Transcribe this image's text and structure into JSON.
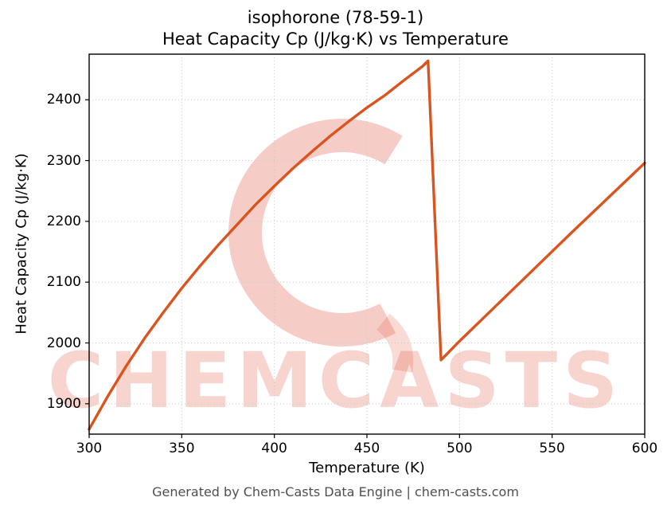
{
  "title_line1": "isophorone (78-59-1)",
  "title_line2": "Heat Capacity Cp (J/kg·K) vs Temperature",
  "footer": "Generated by Chem-Casts Data Engine | chem-casts.com",
  "watermark": {
    "text": "CHEMCASTS",
    "logo": "chemcasts-c-swirl",
    "color": "#e25842"
  },
  "chart_data": {
    "type": "line",
    "title": "isophorone (78-59-1) — Heat Capacity Cp (J/kg·K) vs Temperature",
    "xlabel": "Temperature (K)",
    "ylabel": "Heat Capacity Cp (J/kg·K)",
    "xlim": [
      300,
      600
    ],
    "ylim": [
      1850,
      2475
    ],
    "xticks": [
      300,
      350,
      400,
      450,
      500,
      550,
      600
    ],
    "yticks": [
      1900,
      2000,
      2100,
      2200,
      2300,
      2400
    ],
    "grid": true,
    "legend": false,
    "line_color": "#d9541e",
    "series": [
      {
        "name": "Cp",
        "x": [
          300,
          310,
          320,
          330,
          340,
          350,
          360,
          370,
          380,
          390,
          400,
          410,
          420,
          430,
          440,
          450,
          460,
          470,
          480,
          483,
          490,
          500,
          520,
          540,
          560,
          580,
          600
        ],
        "y": [
          1858,
          1912,
          1962,
          2008,
          2050,
          2090,
          2127,
          2162,
          2195,
          2228,
          2258,
          2287,
          2314,
          2340,
          2364,
          2387,
          2408,
          2432,
          2455,
          2464,
          1972,
          2003,
          2062,
          2121,
          2180,
          2238,
          2296
        ]
      }
    ]
  }
}
